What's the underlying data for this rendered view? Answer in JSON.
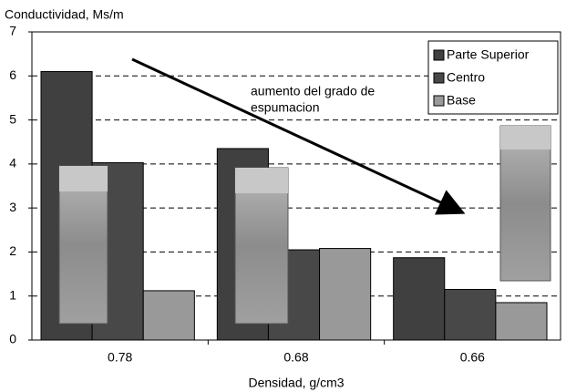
{
  "chart_data": {
    "type": "bar",
    "y_label": "Conductividad, Ms/m",
    "x_label": "Densidad, g/cm3",
    "annotation": [
      "aumento del grado de",
      "espumacion"
    ],
    "categories": [
      "0.78",
      "0.68",
      "0.66"
    ],
    "series": [
      {
        "name": "Parte Superior",
        "color": "#404040",
        "values": [
          6.1,
          4.35,
          1.87
        ]
      },
      {
        "name": "Centro",
        "color": "#484848",
        "values": [
          4.03,
          2.05,
          1.15
        ]
      },
      {
        "name": "Base",
        "color": "#999999",
        "values": [
          1.12,
          2.08,
          0.85
        ]
      }
    ],
    "ylim": [
      0,
      7
    ],
    "yticks": [
      0,
      1,
      2,
      3,
      4,
      5,
      6,
      7
    ],
    "grid": true,
    "legend": "top-right"
  }
}
